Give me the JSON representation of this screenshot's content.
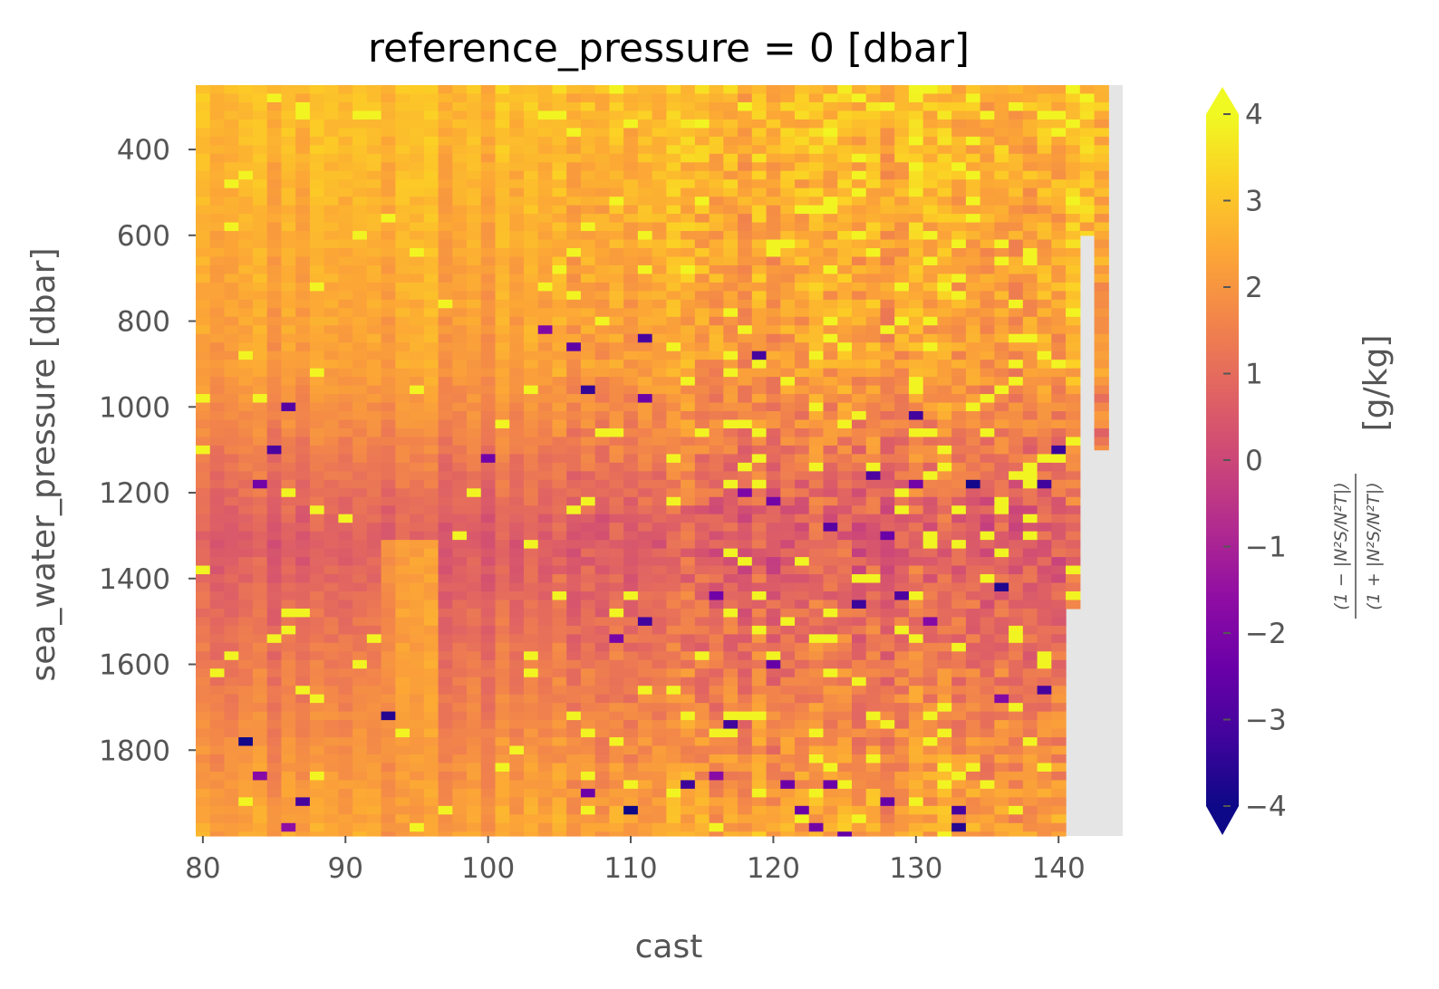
{
  "chart_data": {
    "type": "heatmap",
    "title": "reference_pressure = 0 [dbar]",
    "xlabel": "cast",
    "ylabel": "sea_water_pressure [dbar]",
    "xlim": [
      79.5,
      144.5
    ],
    "ylim": [
      2000,
      250
    ],
    "x_ticks": [
      80,
      90,
      100,
      110,
      120,
      130,
      140
    ],
    "y_ticks": [
      400,
      600,
      800,
      1000,
      1200,
      1400,
      1600,
      1800
    ],
    "x_tick_labels": [
      "80",
      "90",
      "100",
      "110",
      "120",
      "130",
      "140"
    ],
    "y_tick_labels": [
      "400",
      "600",
      "800",
      "1000",
      "1200",
      "1400",
      "1600",
      "1800"
    ],
    "colormap": "plasma",
    "missing_color": "#e5e5e5",
    "colorbar": {
      "min": -4,
      "max": 4,
      "extend": "both",
      "ticks": [
        4,
        3,
        2,
        1,
        0,
        -1,
        -2,
        -3,
        -4
      ],
      "tick_labels": [
        "4",
        "3",
        "2",
        "1",
        "0",
        "−1",
        "−2",
        "−3",
        "−4"
      ],
      "label_unit": "[g/kg]",
      "label_numerator": "(1 − |N²S/N²T|)",
      "label_denominator": "(1 + |N²S/N²T|)"
    },
    "casts": {
      "start": 79.5,
      "end": 144.5,
      "step": 1
    },
    "pressure": {
      "start": 250,
      "end": 2000,
      "step": 20
    },
    "data_coverage": [
      {
        "cast": 142,
        "max_pressure": 600
      },
      {
        "cast": 143,
        "max_pressure": 1100
      },
      {
        "cast": 144,
        "max_pressure": 250
      },
      {
        "cast": 141,
        "max_pressure": 1470
      }
    ]
  }
}
